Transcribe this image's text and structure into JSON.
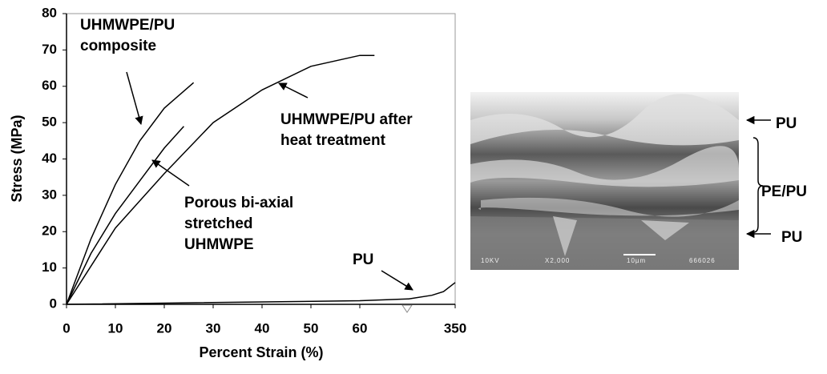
{
  "chart_data": {
    "type": "line",
    "x_label": "Percent Strain (%)",
    "y_label": "Stress (MPa)",
    "xlim": [
      0,
      350
    ],
    "x_break": [
      70,
      330
    ],
    "ylim": [
      0,
      80
    ],
    "xticks": [
      0,
      10,
      20,
      30,
      40,
      50,
      60,
      350
    ],
    "yticks": [
      0,
      10,
      20,
      30,
      40,
      50,
      60,
      70,
      80
    ],
    "grid": false,
    "series": [
      {
        "label": [
          "UHMWPE/PU",
          "composite"
        ],
        "color": "#000000",
        "x": [
          0,
          5,
          10,
          15,
          20,
          26
        ],
        "values": [
          0,
          18,
          33,
          45,
          54,
          61
        ]
      },
      {
        "label": [
          "Porous bi-axial",
          "stretched",
          "UHMWPE"
        ],
        "color": "#000000",
        "x": [
          0,
          5,
          10,
          15,
          20,
          24
        ],
        "values": [
          0,
          14,
          25,
          34,
          43,
          49
        ]
      },
      {
        "label": [
          "UHMWPE/PU after",
          "heat treatment"
        ],
        "color": "#000000",
        "x": [
          0,
          10,
          20,
          30,
          40,
          50,
          60,
          63
        ],
        "values": [
          0,
          21,
          36,
          50,
          59,
          65.5,
          68.5,
          68.5
        ]
      },
      {
        "label": [
          "PU"
        ],
        "color": "#000000",
        "x": [
          0,
          60,
          330,
          340,
          345,
          350
        ],
        "values": [
          0,
          1,
          1.5,
          2.5,
          3.5,
          6
        ]
      }
    ]
  },
  "sem_image": {
    "caption": [
      "10KV",
      "X2,000",
      "10µm",
      "666026"
    ],
    "labels": [
      "PU",
      "PE/PU",
      "PU"
    ]
  }
}
